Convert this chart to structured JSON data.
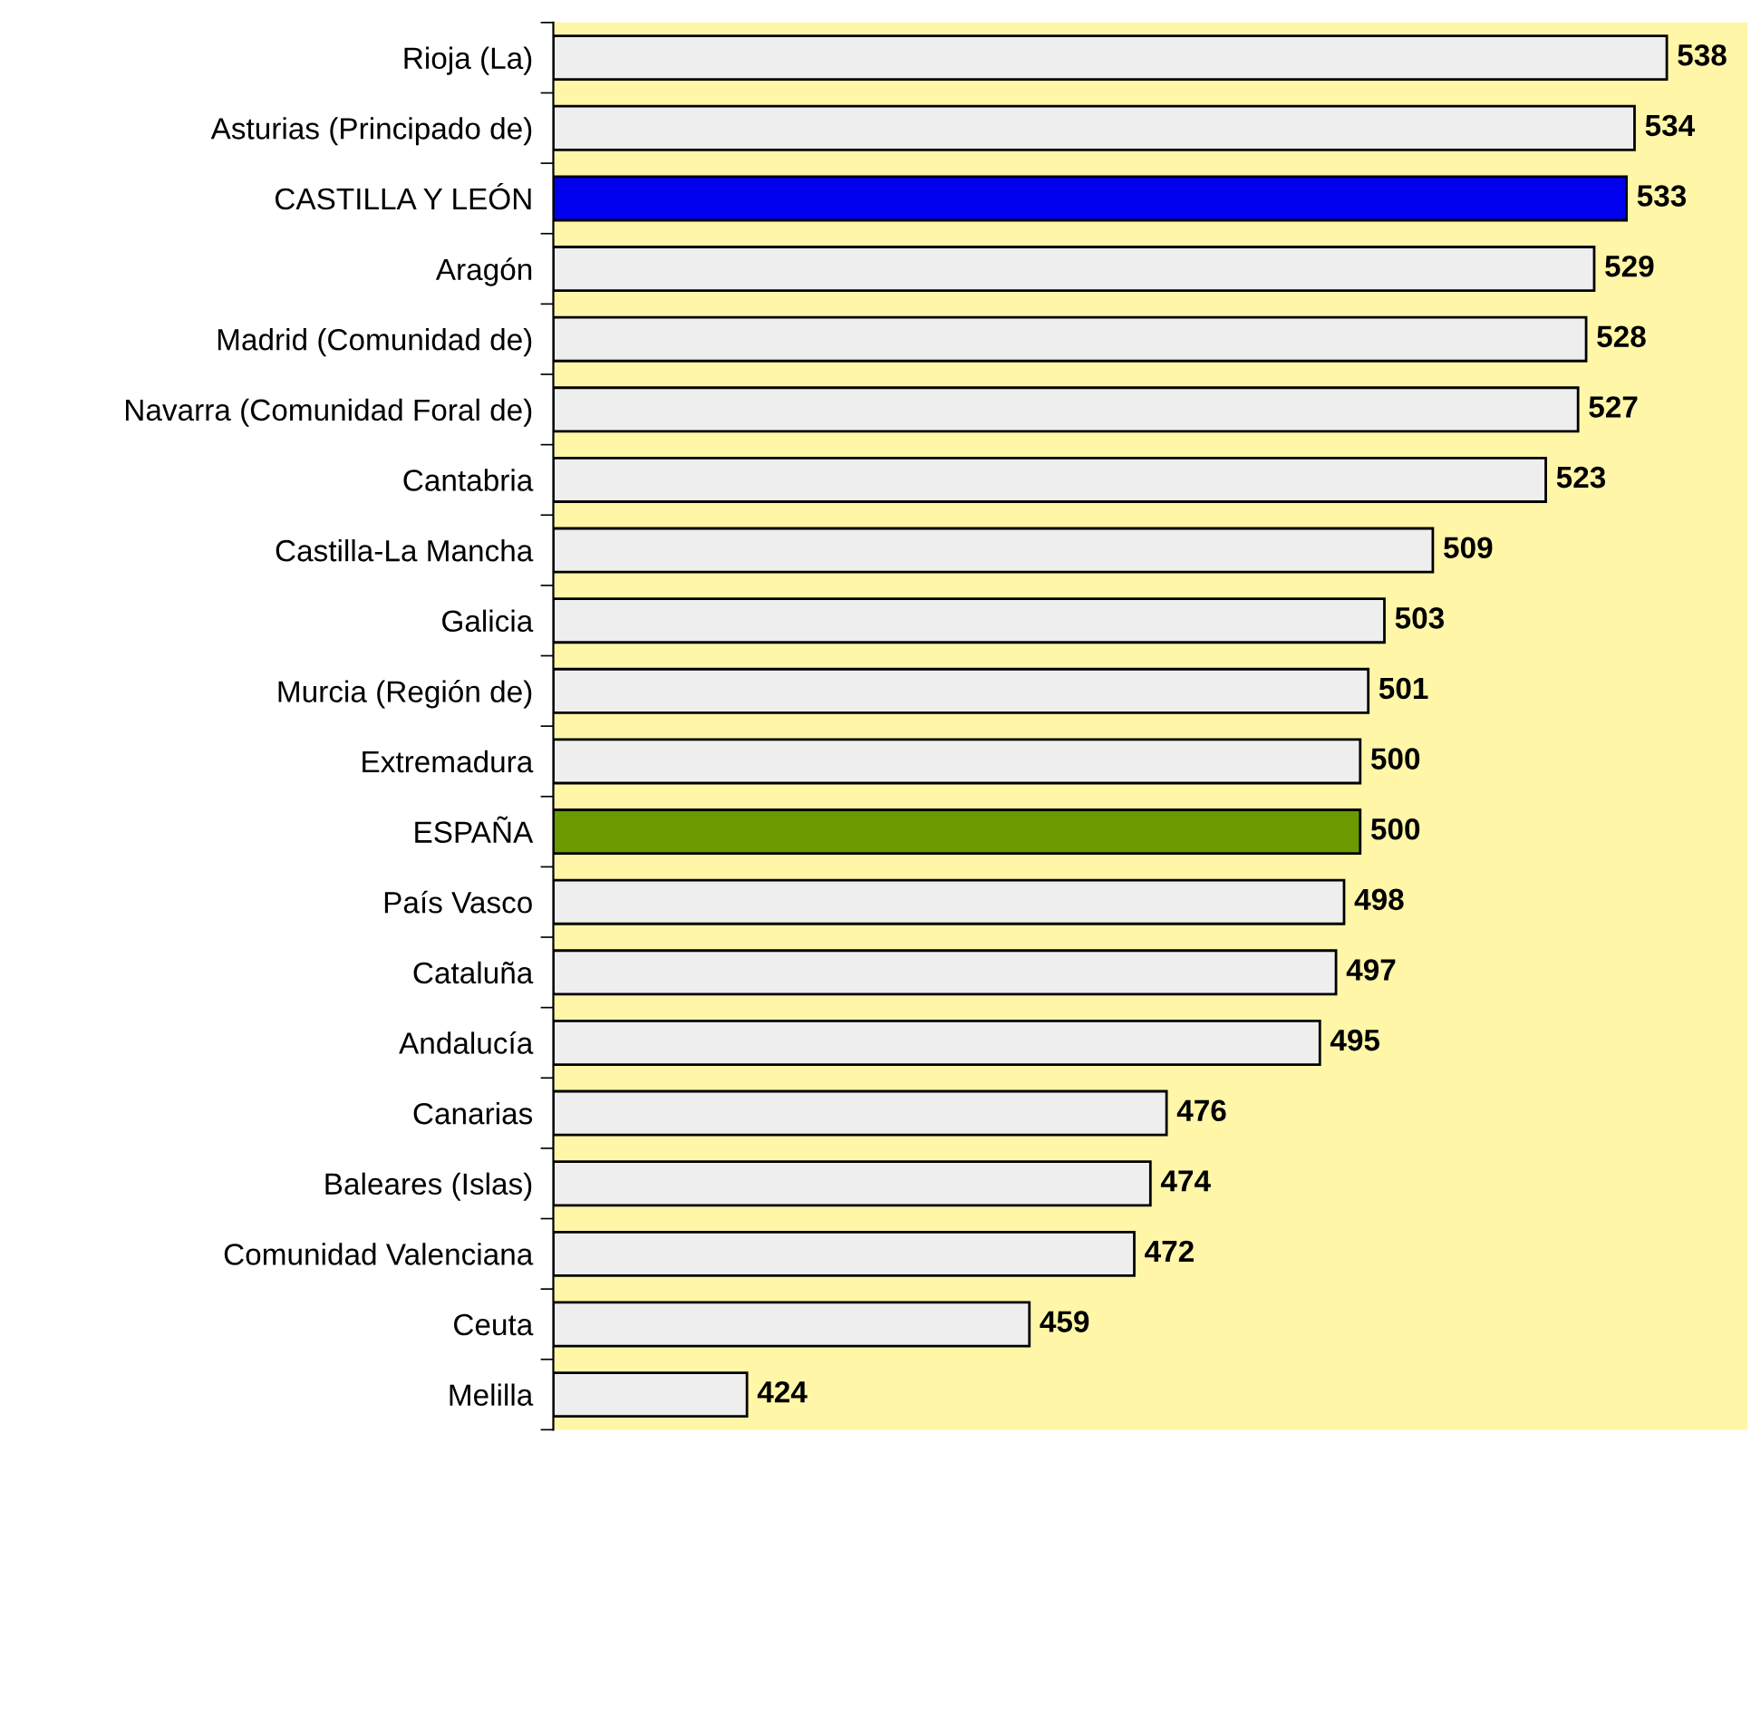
{
  "chart_data": {
    "type": "bar",
    "orientation": "horizontal",
    "categories": [
      "Rioja (La)",
      "Asturias (Principado de)",
      "CASTILLA Y LEÓN",
      "Aragón",
      "Madrid (Comunidad de)",
      "Navarra (Comunidad Foral de)",
      "Cantabria",
      "Castilla-La Mancha",
      "Galicia",
      "Murcia (Región de)",
      "Extremadura",
      "ESPAÑA",
      "País Vasco",
      "Cataluña",
      "Andalucía",
      "Canarias",
      "Baleares (Islas)",
      "Comunidad Valenciana",
      "Ceuta",
      "Melilla"
    ],
    "values": [
      538,
      534,
      533,
      529,
      528,
      527,
      523,
      509,
      503,
      501,
      500,
      500,
      498,
      497,
      495,
      476,
      474,
      472,
      459,
      424
    ],
    "colors": [
      "#eeeeee",
      "#eeeeee",
      "#0000ee",
      "#eeeeee",
      "#eeeeee",
      "#eeeeee",
      "#eeeeee",
      "#eeeeee",
      "#eeeeee",
      "#eeeeee",
      "#eeeeee",
      "#6b9a00",
      "#eeeeee",
      "#eeeeee",
      "#eeeeee",
      "#eeeeee",
      "#eeeeee",
      "#eeeeee",
      "#eeeeee",
      "#eeeeee"
    ],
    "xlim": [
      400,
      548
    ],
    "data_labels": true,
    "tick_labels": "y",
    "grid": false
  }
}
